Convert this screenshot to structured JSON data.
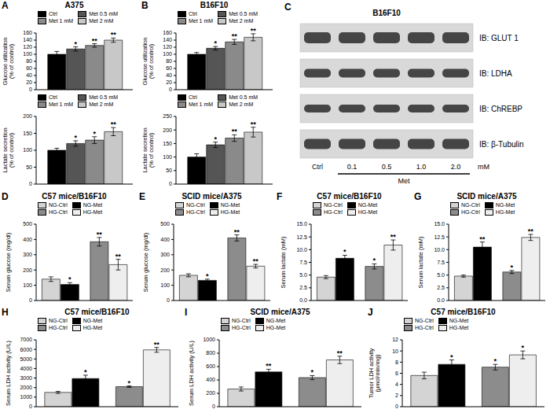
{
  "chart_data": [
    {
      "type": "bar",
      "panel": "A",
      "title": "A375",
      "ylabel": [
        "Glucose utilization",
        "(% of control)"
      ],
      "categories": [
        null
      ],
      "ylim": [
        0,
        160
      ],
      "yticks": [
        0,
        20,
        40,
        60,
        80,
        100,
        120,
        140,
        160
      ],
      "tick_labels": "y",
      "legend": "top",
      "series": [
        {
          "name": "Ctrl",
          "color": "#000000",
          "values": [
            100
          ],
          "errors": [
            8
          ],
          "annotations": [
            null
          ]
        },
        {
          "name": "Met 0.5 mM",
          "color": "#555555",
          "values": [
            115
          ],
          "errors": [
            6
          ],
          "annotations": [
            "*"
          ]
        },
        {
          "name": "Met 1 mM",
          "color": "#8a8a8a",
          "values": [
            125
          ],
          "errors": [
            5
          ],
          "annotations": [
            "**"
          ]
        },
        {
          "name": "Met 2 mM",
          "color": "#c8c8c8",
          "values": [
            140
          ],
          "errors": [
            6
          ],
          "annotations": [
            "**"
          ]
        }
      ]
    },
    {
      "type": "bar",
      "ylabel": [
        "Lactate secretion",
        "(% of control)"
      ],
      "categories": [
        null
      ],
      "ylim": [
        0,
        200
      ],
      "yticks": [
        0,
        50,
        100,
        150,
        200
      ],
      "tick_labels": "y",
      "legend": "top",
      "series": [
        {
          "name": "Ctrl",
          "color": "#000000",
          "values": [
            100
          ],
          "errors": [
            6
          ],
          "annotations": [
            null
          ]
        },
        {
          "name": "Met 0.5 mM",
          "color": "#555555",
          "values": [
            120
          ],
          "errors": [
            8
          ],
          "annotations": [
            "*"
          ]
        },
        {
          "name": "Met 1 mM",
          "color": "#8a8a8a",
          "values": [
            130
          ],
          "errors": [
            10
          ],
          "annotations": [
            "*"
          ]
        },
        {
          "name": "Met 2 mM",
          "color": "#c8c8c8",
          "values": [
            155
          ],
          "errors": [
            12
          ],
          "annotations": [
            "**"
          ]
        }
      ]
    },
    {
      "type": "bar",
      "panel": "B",
      "title": "B16F10",
      "ylabel": [
        "Glucose utilization",
        "(% of control)"
      ],
      "categories": [
        null
      ],
      "ylim": [
        0,
        160
      ],
      "yticks": [
        0,
        20,
        40,
        60,
        80,
        100,
        120,
        140,
        160
      ],
      "tick_labels": "y",
      "legend": "top",
      "series": [
        {
          "name": "Ctrl",
          "color": "#000000",
          "values": [
            100
          ],
          "errors": [
            5
          ],
          "annotations": [
            null
          ]
        },
        {
          "name": "Met 0.5 mM",
          "color": "#555555",
          "values": [
            117
          ],
          "errors": [
            5
          ],
          "annotations": [
            "*"
          ]
        },
        {
          "name": "Met 1 mM",
          "color": "#8a8a8a",
          "values": [
            135
          ],
          "errors": [
            7
          ],
          "annotations": [
            "**"
          ]
        },
        {
          "name": "Met 2 mM",
          "color": "#c8c8c8",
          "values": [
            148
          ],
          "errors": [
            10
          ],
          "annotations": [
            "**"
          ]
        }
      ]
    },
    {
      "type": "bar",
      "ylabel": [
        "Lactate secretion",
        "(% of control)"
      ],
      "categories": [
        null
      ],
      "ylim": [
        0,
        250
      ],
      "yticks": [
        0,
        50,
        100,
        150,
        200,
        250
      ],
      "tick_labels": "y",
      "legend": "top",
      "series": [
        {
          "name": "Ctrl",
          "color": "#000000",
          "values": [
            100
          ],
          "errors": [
            12
          ],
          "annotations": [
            null
          ]
        },
        {
          "name": "Met 0.5 mM",
          "color": "#555555",
          "values": [
            145
          ],
          "errors": [
            10
          ],
          "annotations": [
            "*"
          ]
        },
        {
          "name": "Met 1 mM",
          "color": "#8a8a8a",
          "values": [
            170
          ],
          "errors": [
            12
          ],
          "annotations": [
            "**"
          ]
        },
        {
          "name": "Met 2 mM",
          "color": "#c8c8c8",
          "values": [
            192
          ],
          "errors": [
            18
          ],
          "annotations": [
            "**"
          ]
        }
      ]
    },
    {
      "type": "bar",
      "panel": "D",
      "title": "C57 mice/B16F10",
      "ylabel": [
        "Serum glucose (mg/dl)"
      ],
      "categories": [
        null,
        null
      ],
      "ylim": [
        0,
        500
      ],
      "yticks": [
        0,
        100,
        200,
        300,
        400,
        500
      ],
      "tick_labels": "y",
      "legend": "top",
      "series": [
        {
          "name": "NG-Ctrl",
          "color": "#d4d4d4",
          "values": [
            140,
            null
          ],
          "errors": [
            15,
            null
          ],
          "annotations": [
            null,
            null
          ]
        },
        {
          "name": "NG-Met",
          "color": "#000000",
          "values": [
            105,
            null
          ],
          "errors": [
            12,
            null
          ],
          "annotations": [
            "*",
            null
          ]
        },
        {
          "name": "HG-Ctrl",
          "color": "#8c8c8c",
          "values": [
            null,
            385
          ],
          "errors": [
            null,
            28
          ],
          "annotations": [
            null,
            "**"
          ]
        },
        {
          "name": "HG-Met",
          "color": "#eeeeee",
          "values": [
            null,
            235
          ],
          "errors": [
            null,
            35
          ],
          "annotations": [
            null,
            "**"
          ]
        }
      ]
    },
    {
      "type": "bar",
      "panel": "E",
      "title": "SCID mice/A375",
      "ylabel": [
        "Serum glucose (mg/dl)"
      ],
      "categories": [
        null,
        null
      ],
      "ylim": [
        0,
        500
      ],
      "yticks": [
        0,
        100,
        200,
        300,
        400,
        500
      ],
      "tick_labels": "y",
      "legend": "top",
      "series": [
        {
          "name": "NG-Ctrl",
          "color": "#d4d4d4",
          "values": [
            165,
            null
          ],
          "errors": [
            10,
            null
          ],
          "annotations": [
            null,
            null
          ]
        },
        {
          "name": "NG-Met",
          "color": "#000000",
          "values": [
            132,
            null
          ],
          "errors": [
            8,
            null
          ],
          "annotations": [
            "*",
            null
          ]
        },
        {
          "name": "HG-Ctrl",
          "color": "#8c8c8c",
          "values": [
            null,
            410
          ],
          "errors": [
            null,
            20
          ],
          "annotations": [
            null,
            "**"
          ]
        },
        {
          "name": "HG-Met",
          "color": "#eeeeee",
          "values": [
            null,
            225
          ],
          "errors": [
            null,
            12
          ],
          "annotations": [
            null,
            "**"
          ]
        }
      ]
    },
    {
      "type": "bar",
      "panel": "F",
      "title": "C57 mice/B16F10",
      "ylabel": [
        "Serum lactate (mM)"
      ],
      "categories": [
        null,
        null
      ],
      "ylim": [
        0,
        15
      ],
      "yticks": [
        {
          "value": 0,
          "label": "0.0"
        },
        2.5,
        {
          "value": 5,
          "label": "5.0"
        },
        7.5,
        {
          "value": 10,
          "label": "10.0"
        },
        12.5,
        {
          "value": 15,
          "label": "15.0"
        }
      ],
      "tick_labels": "y",
      "legend": "top",
      "series": [
        {
          "name": "NG-Ctrl",
          "color": "#d4d4d4",
          "values": [
            4.6,
            null
          ],
          "errors": [
            0.3,
            null
          ],
          "annotations": [
            null,
            null
          ]
        },
        {
          "name": "NG-Met",
          "color": "#000000",
          "values": [
            8.3,
            null
          ],
          "errors": [
            0.6,
            null
          ],
          "annotations": [
            "*",
            null
          ]
        },
        {
          "name": "HG-Ctrl",
          "color": "#8c8c8c",
          "values": [
            null,
            6.7
          ],
          "errors": [
            null,
            0.5
          ],
          "annotations": [
            null,
            "*"
          ]
        },
        {
          "name": "HG-Met",
          "color": "#eeeeee",
          "values": [
            null,
            10.9
          ],
          "errors": [
            null,
            1.0
          ],
          "annotations": [
            null,
            "**"
          ]
        }
      ]
    },
    {
      "type": "bar",
      "panel": "G",
      "title": "SCID mice/A375",
      "ylabel": [
        "Serum lactate (mM)"
      ],
      "categories": [
        null,
        null
      ],
      "ylim": [
        0,
        15
      ],
      "yticks": [
        {
          "value": 0,
          "label": "0.0"
        },
        2.5,
        {
          "value": 5,
          "label": "5.0"
        },
        7.5,
        {
          "value": 10,
          "label": "10.0"
        },
        12.5,
        {
          "value": 15,
          "label": "15.0"
        }
      ],
      "tick_labels": "y",
      "legend": "top",
      "series": [
        {
          "name": "NG-Ctrl",
          "color": "#d4d4d4",
          "values": [
            4.8,
            null
          ],
          "errors": [
            0.2,
            null
          ],
          "annotations": [
            null,
            null
          ]
        },
        {
          "name": "NG-Met",
          "color": "#000000",
          "values": [
            10.5,
            null
          ],
          "errors": [
            1.0,
            null
          ],
          "annotations": [
            "**",
            null
          ]
        },
        {
          "name": "HG-Ctrl",
          "color": "#8c8c8c",
          "values": [
            null,
            5.6
          ],
          "errors": [
            null,
            0.3
          ],
          "annotations": [
            null,
            "*"
          ]
        },
        {
          "name": "HG-Met",
          "color": "#eeeeee",
          "values": [
            null,
            12.4
          ],
          "errors": [
            null,
            0.6
          ],
          "annotations": [
            null,
            "**"
          ]
        }
      ]
    },
    {
      "type": "bar",
      "panel": "H",
      "title": "C57 mice/B16F10",
      "ylabel": [
        "Serum LDH activity (U/L)"
      ],
      "categories": [
        null,
        null
      ],
      "ylim": [
        0,
        7000
      ],
      "yticks": [
        0,
        1000,
        2000,
        3000,
        4000,
        5000,
        6000,
        7000
      ],
      "tick_labels": "y",
      "legend": "top",
      "series": [
        {
          "name": "NG-Ctrl",
          "color": "#d4d4d4",
          "values": [
            1500,
            null
          ],
          "errors": [
            100,
            null
          ],
          "annotations": [
            null,
            null
          ]
        },
        {
          "name": "NG-Met",
          "color": "#000000",
          "values": [
            2950,
            null
          ],
          "errors": [
            350,
            null
          ],
          "annotations": [
            "*",
            null
          ]
        },
        {
          "name": "HG-Ctrl",
          "color": "#8c8c8c",
          "values": [
            null,
            2100
          ],
          "errors": [
            null,
            80
          ],
          "annotations": [
            null,
            "*"
          ]
        },
        {
          "name": "HG-Met",
          "color": "#eeeeee",
          "values": [
            null,
            5950
          ],
          "errors": [
            null,
            250
          ],
          "annotations": [
            null,
            "**"
          ]
        }
      ]
    },
    {
      "type": "bar",
      "panel": "I",
      "title": "SCID mice/A375",
      "ylabel": [
        "Serum LDH activity (U/L)"
      ],
      "categories": [
        null,
        null
      ],
      "ylim": [
        0,
        1000
      ],
      "yticks": [
        0,
        200,
        400,
        600,
        800,
        1000
      ],
      "tick_labels": "y",
      "legend": "top",
      "series": [
        {
          "name": "NG-Ctrl",
          "color": "#d4d4d4",
          "values": [
            265,
            null
          ],
          "errors": [
            30,
            null
          ],
          "annotations": [
            null,
            null
          ]
        },
        {
          "name": "NG-Met",
          "color": "#000000",
          "values": [
            520,
            null
          ],
          "errors": [
            40,
            null
          ],
          "annotations": [
            "**",
            null
          ]
        },
        {
          "name": "HG-Ctrl",
          "color": "#8c8c8c",
          "values": [
            null,
            435
          ],
          "errors": [
            null,
            30
          ],
          "annotations": [
            null,
            "*"
          ]
        },
        {
          "name": "HG-Met",
          "color": "#eeeeee",
          "values": [
            null,
            700
          ],
          "errors": [
            null,
            55
          ],
          "annotations": [
            null,
            "**"
          ]
        }
      ]
    },
    {
      "type": "bar",
      "panel": "J",
      "title": "C57 mice/B16F10",
      "ylabel": [
        "Tumor LDH activity",
        "(μmol/min/mg)"
      ],
      "categories": [
        null,
        null
      ],
      "ylim": [
        0,
        12
      ],
      "yticks": [
        0,
        2,
        4,
        6,
        8,
        10,
        12
      ],
      "tick_labels": "y",
      "legend": "top",
      "series": [
        {
          "name": "NG-Ctrl",
          "color": "#d4d4d4",
          "values": [
            5.6,
            null
          ],
          "errors": [
            0.6,
            null
          ],
          "annotations": [
            null,
            null
          ]
        },
        {
          "name": "NG-Met",
          "color": "#000000",
          "values": [
            7.6,
            null
          ],
          "errors": [
            0.8,
            null
          ],
          "annotations": [
            "*",
            null
          ]
        },
        {
          "name": "HG-Ctrl",
          "color": "#8c8c8c",
          "values": [
            null,
            7.1
          ],
          "errors": [
            null,
            0.5
          ],
          "annotations": [
            null,
            "*"
          ]
        },
        {
          "name": "HG-Met",
          "color": "#eeeeee",
          "values": [
            null,
            9.3
          ],
          "errors": [
            null,
            0.7
          ],
          "annotations": [
            null,
            "*"
          ]
        }
      ]
    }
  ],
  "blot": {
    "panel": "C",
    "title": "B16F10",
    "rows": [
      "IB: GLUT 1",
      "IB: LDHA",
      "IB: ChREBP",
      "IB: β-Tubulin"
    ],
    "lanes": [
      "Ctrl",
      "0.1",
      "0.5",
      "1.0",
      "2.0"
    ],
    "unit": "mM",
    "treatment": "Met"
  }
}
